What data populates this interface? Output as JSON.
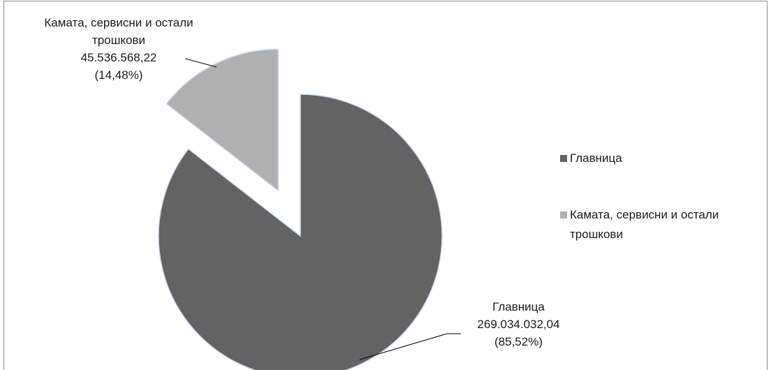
{
  "chart_data": {
    "type": "pie",
    "categories": [
      "Главница",
      "Камата, сервисни и остали трошкови"
    ],
    "values": [
      269034032.04,
      45536568.22
    ],
    "value_labels": [
      "269.034.032,04",
      "45.536.568,22"
    ],
    "percents": [
      85.52,
      14.48
    ],
    "percent_labels": [
      "(85,52%)",
      "(14,48%)"
    ],
    "colors": [
      "#636363",
      "#b0b0b0"
    ],
    "exploded": [
      false,
      true
    ],
    "legend": "right"
  }
}
